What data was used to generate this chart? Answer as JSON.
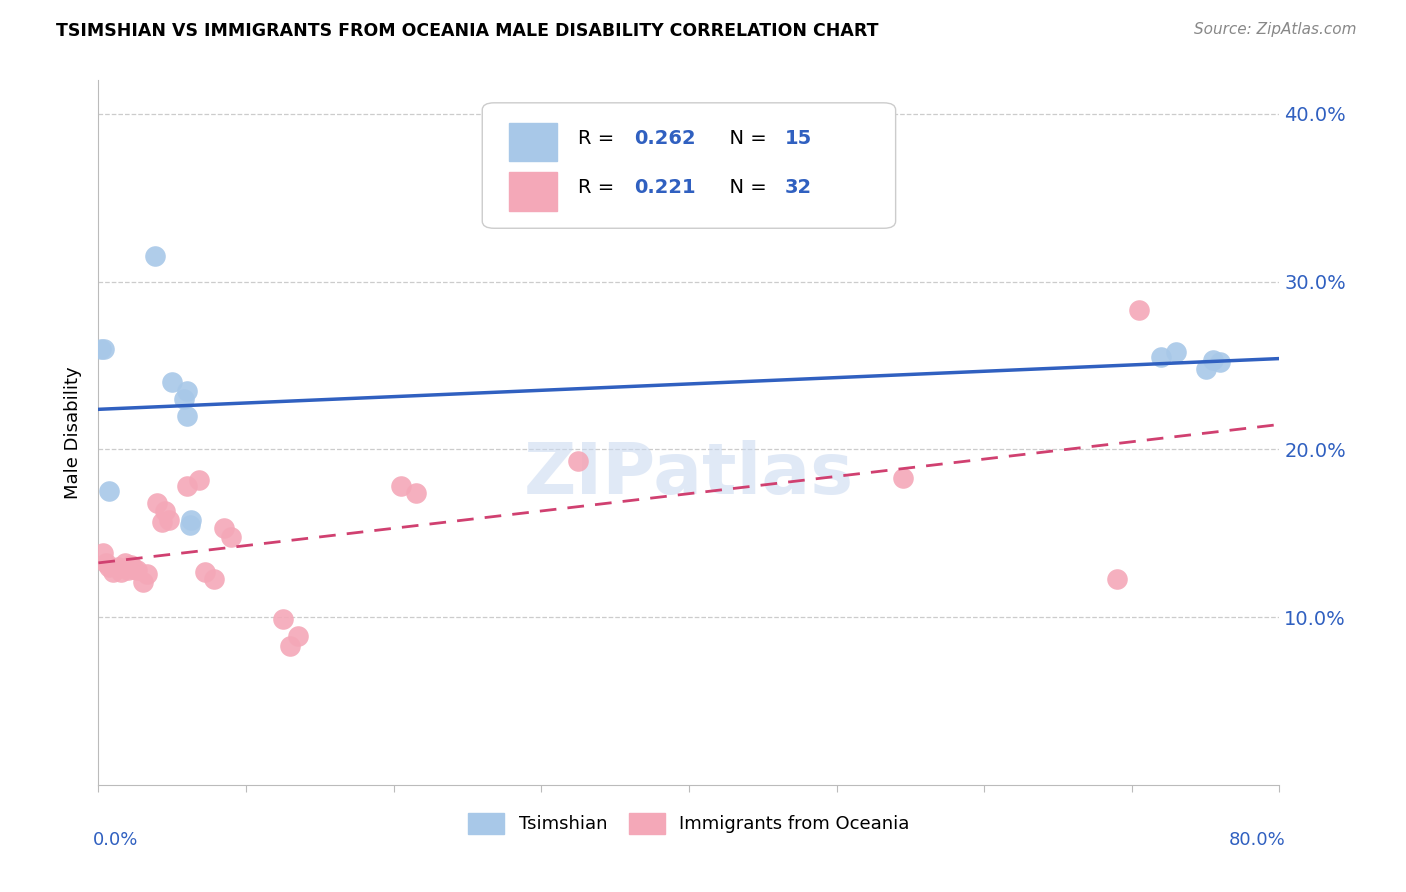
{
  "title": "TSIMSHIAN VS IMMIGRANTS FROM OCEANIA MALE DISABILITY CORRELATION CHART",
  "source": "Source: ZipAtlas.com",
  "ylabel": "Male Disability",
  "x_min": 0.0,
  "x_max": 0.8,
  "y_min": 0.0,
  "y_max": 0.42,
  "y_ticks": [
    0.1,
    0.2,
    0.3,
    0.4
  ],
  "y_tick_labels": [
    "10.0%",
    "20.0%",
    "30.0%",
    "40.0%"
  ],
  "tsimshian_color": "#a8c8e8",
  "oceania_color": "#f4a8b8",
  "tsimshian_line_color": "#3060c0",
  "oceania_line_color": "#d04070",
  "tsimshian_R": "0.262",
  "tsimshian_N": "15",
  "oceania_R": "0.221",
  "oceania_N": "32",
  "tsimshian_points_x": [
    0.002,
    0.004,
    0.038,
    0.007,
    0.05,
    0.058,
    0.06,
    0.06,
    0.062,
    0.063,
    0.72,
    0.73,
    0.75,
    0.755,
    0.76
  ],
  "tsimshian_points_y": [
    0.26,
    0.26,
    0.315,
    0.175,
    0.24,
    0.23,
    0.235,
    0.22,
    0.155,
    0.158,
    0.255,
    0.258,
    0.248,
    0.253,
    0.252
  ],
  "oceania_points_x": [
    0.003,
    0.005,
    0.007,
    0.01,
    0.013,
    0.015,
    0.018,
    0.02,
    0.022,
    0.024,
    0.026,
    0.03,
    0.033,
    0.04,
    0.043,
    0.045,
    0.048,
    0.06,
    0.068,
    0.072,
    0.078,
    0.085,
    0.09,
    0.125,
    0.13,
    0.135,
    0.205,
    0.215,
    0.325,
    0.545,
    0.69,
    0.705
  ],
  "oceania_points_y": [
    0.138,
    0.132,
    0.13,
    0.127,
    0.13,
    0.127,
    0.132,
    0.128,
    0.131,
    0.129,
    0.128,
    0.121,
    0.126,
    0.168,
    0.157,
    0.163,
    0.158,
    0.178,
    0.182,
    0.127,
    0.123,
    0.153,
    0.148,
    0.099,
    0.083,
    0.089,
    0.178,
    0.174,
    0.193,
    0.183,
    0.123,
    0.283
  ],
  "background_color": "#ffffff",
  "watermark_text": "ZIPatlas",
  "watermark_color": "#c8d8f0",
  "legend_value_color": "#3060c0",
  "right_axis_color": "#3060c0",
  "bottom_label_color": "#3060c0"
}
